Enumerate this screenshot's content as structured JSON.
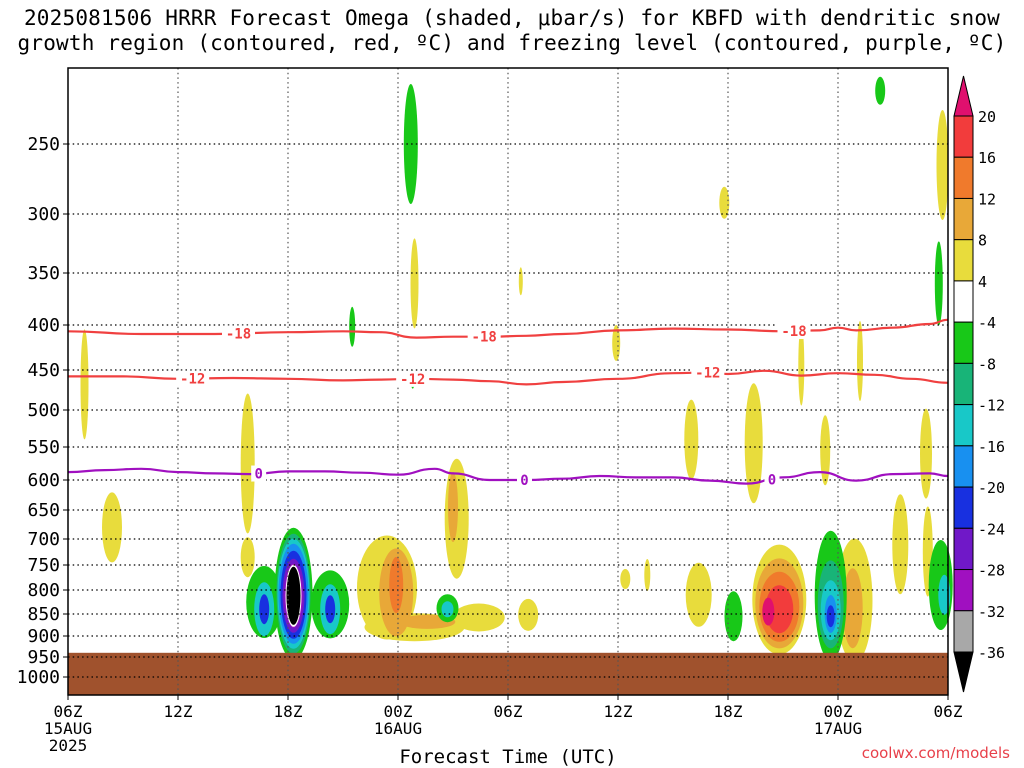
{
  "title_line1": "2025081506 HRRR Forecast Omega (shaded, μbar/s) for KBFD with dendritic snow",
  "title_line2": "growth region (contoured, red, ºC) and freezing level (contoured, purple, ºC)",
  "credit": "coolwx.com/models",
  "chart_data": {
    "type": "heatmap",
    "title": "2025081506 HRRR Forecast Omega (shaded, μbar/s) for KBFD with dendritic snow growth region (contoured, red, ºC) and freezing level (contoured, purple, ºC)",
    "xlabel": "Forecast Time (UTC)",
    "ylabel": "",
    "x_range_hours": [
      0,
      48
    ],
    "x_ticks": [
      {
        "hour": 0,
        "label": "06Z",
        "date": "15AUG",
        "year": "2025"
      },
      {
        "hour": 6,
        "label": "12Z"
      },
      {
        "hour": 12,
        "label": "18Z"
      },
      {
        "hour": 18,
        "label": "00Z",
        "date": "16AUG"
      },
      {
        "hour": 24,
        "label": "06Z"
      },
      {
        "hour": 30,
        "label": "12Z"
      },
      {
        "hour": 36,
        "label": "18Z"
      },
      {
        "hour": 42,
        "label": "00Z",
        "date": "17AUG"
      },
      {
        "hour": 48,
        "label": "06Z"
      }
    ],
    "y_axis_pressure_ticks": [
      250,
      300,
      350,
      400,
      450,
      500,
      550,
      600,
      650,
      700,
      750,
      800,
      850,
      900,
      950,
      1000
    ],
    "y_range_hpa": [
      200,
      1025
    ],
    "grid": true,
    "colorbar": {
      "levels": [
        20,
        16,
        12,
        8,
        4,
        -4,
        -8,
        -12,
        -16,
        -20,
        -24,
        -28,
        -32,
        -36
      ],
      "colors": [
        "#e0106e",
        "#f23c3c",
        "#f07a2c",
        "#e8a838",
        "#e8dc3c",
        "#ffffff",
        "#18c818",
        "#18b478",
        "#18c8c8",
        "#1890f0",
        "#1830e0",
        "#7018c8",
        "#a010c0",
        "#a8a8a8",
        "#000000"
      ]
    },
    "surface_fill_color": "#a0522d",
    "surface_pressure_hpa": 940,
    "contours": [
      {
        "label": "-18",
        "color": "#f04040",
        "label_hours": [
          9.3,
          22.7,
          39.6
        ],
        "points": [
          [
            0,
            407
          ],
          [
            4,
            410
          ],
          [
            8,
            410
          ],
          [
            12,
            408
          ],
          [
            15,
            407
          ],
          [
            17,
            408
          ],
          [
            19,
            414
          ],
          [
            21,
            413
          ],
          [
            23,
            413
          ],
          [
            25,
            412
          ],
          [
            27,
            410
          ],
          [
            30,
            406
          ],
          [
            33,
            404
          ],
          [
            36,
            405
          ],
          [
            39,
            407
          ],
          [
            41,
            406
          ],
          [
            42,
            403
          ],
          [
            43,
            406
          ],
          [
            45,
            403
          ],
          [
            47,
            399
          ],
          [
            48,
            395
          ]
        ]
      },
      {
        "label": "-12",
        "color": "#f04040",
        "label_hours": [
          6.8,
          18.8,
          34.9
        ],
        "points": [
          [
            0,
            458
          ],
          [
            3,
            458
          ],
          [
            6,
            461
          ],
          [
            9,
            460
          ],
          [
            12,
            461
          ],
          [
            15,
            463
          ],
          [
            17,
            462
          ],
          [
            19,
            461
          ],
          [
            21,
            462
          ],
          [
            23,
            464
          ],
          [
            25,
            468
          ],
          [
            27,
            465
          ],
          [
            30,
            461
          ],
          [
            33,
            454
          ],
          [
            35,
            453
          ],
          [
            36,
            455
          ],
          [
            38,
            451
          ],
          [
            40,
            457
          ],
          [
            42,
            454
          ],
          [
            44,
            456
          ],
          [
            46,
            461
          ],
          [
            48,
            466
          ]
        ]
      },
      {
        "label": "0",
        "color": "#a010c0",
        "label_hours": [
          10.4,
          24.9,
          38.4
        ],
        "points": [
          [
            0,
            588
          ],
          [
            2,
            585
          ],
          [
            4,
            583
          ],
          [
            6,
            588
          ],
          [
            8,
            590
          ],
          [
            10,
            591
          ],
          [
            12,
            587
          ],
          [
            14,
            587
          ],
          [
            16,
            589
          ],
          [
            18,
            592
          ],
          [
            20,
            583
          ],
          [
            21,
            590
          ],
          [
            23,
            600
          ],
          [
            25,
            600
          ],
          [
            27,
            598
          ],
          [
            29,
            594
          ],
          [
            31,
            596
          ],
          [
            33,
            596
          ],
          [
            35,
            601
          ],
          [
            37,
            606
          ],
          [
            39,
            596
          ],
          [
            41,
            588
          ],
          [
            43,
            601
          ],
          [
            45,
            591
          ],
          [
            47,
            590
          ],
          [
            48,
            594
          ]
        ]
      }
    ],
    "omega_regions": [
      {
        "hour": 12.3,
        "hpa": 820,
        "value": -36,
        "note": "strongest upward motion centered near 18Z 15AUG around 820 hPa"
      },
      {
        "hour": 38.8,
        "hpa": 850,
        "value": 20,
        "note": "strongest downward motion near 20Z 16AUG around 850 hPa"
      }
    ]
  }
}
